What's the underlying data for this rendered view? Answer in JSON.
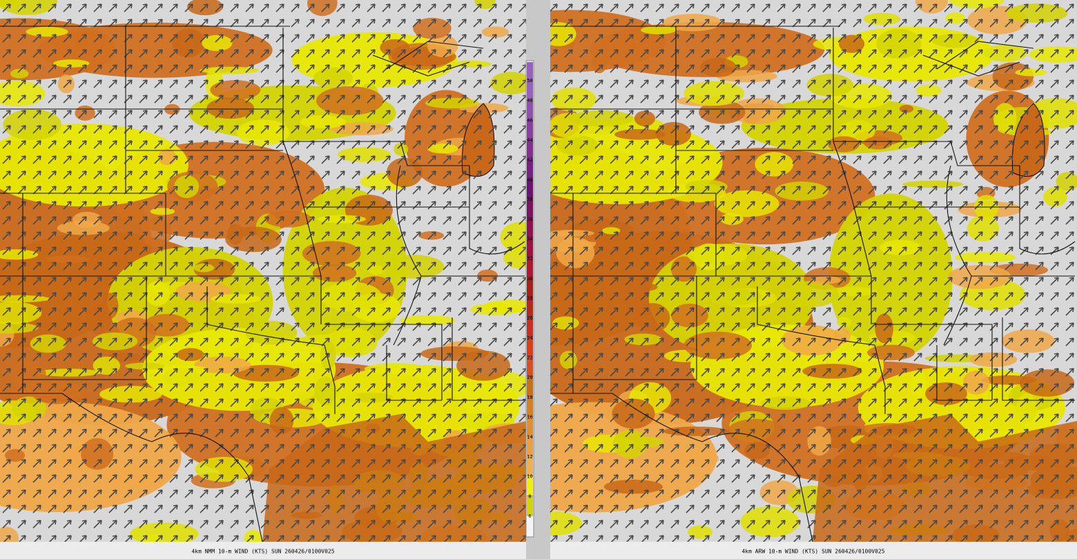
{
  "panels": [
    {
      "caption": "4km NMM 10-m WIND (KTS) SUN 260426/0100V025"
    },
    {
      "caption": "4km ARW 10-m WIND (KTS) SUN 260426/0100V025"
    }
  ],
  "colorbar": {
    "ticks": [
      6,
      8,
      10,
      12,
      14,
      16,
      18,
      20,
      22,
      24,
      26,
      28,
      30,
      32,
      34,
      36,
      38,
      40,
      42,
      44,
      46,
      48,
      50
    ],
    "colors": [
      "#d4d400",
      "#f0f000",
      "#f0b050",
      "#e8a040",
      "#e09030",
      "#d88020",
      "#c87018",
      "#d85020",
      "#d84018",
      "#c83018",
      "#b82818",
      "#a82018",
      "#b01830",
      "#a01040",
      "#901050",
      "#801060",
      "#701070",
      "#782080",
      "#803090",
      "#8840a0",
      "#9050b0",
      "#9860c0"
    ]
  }
}
